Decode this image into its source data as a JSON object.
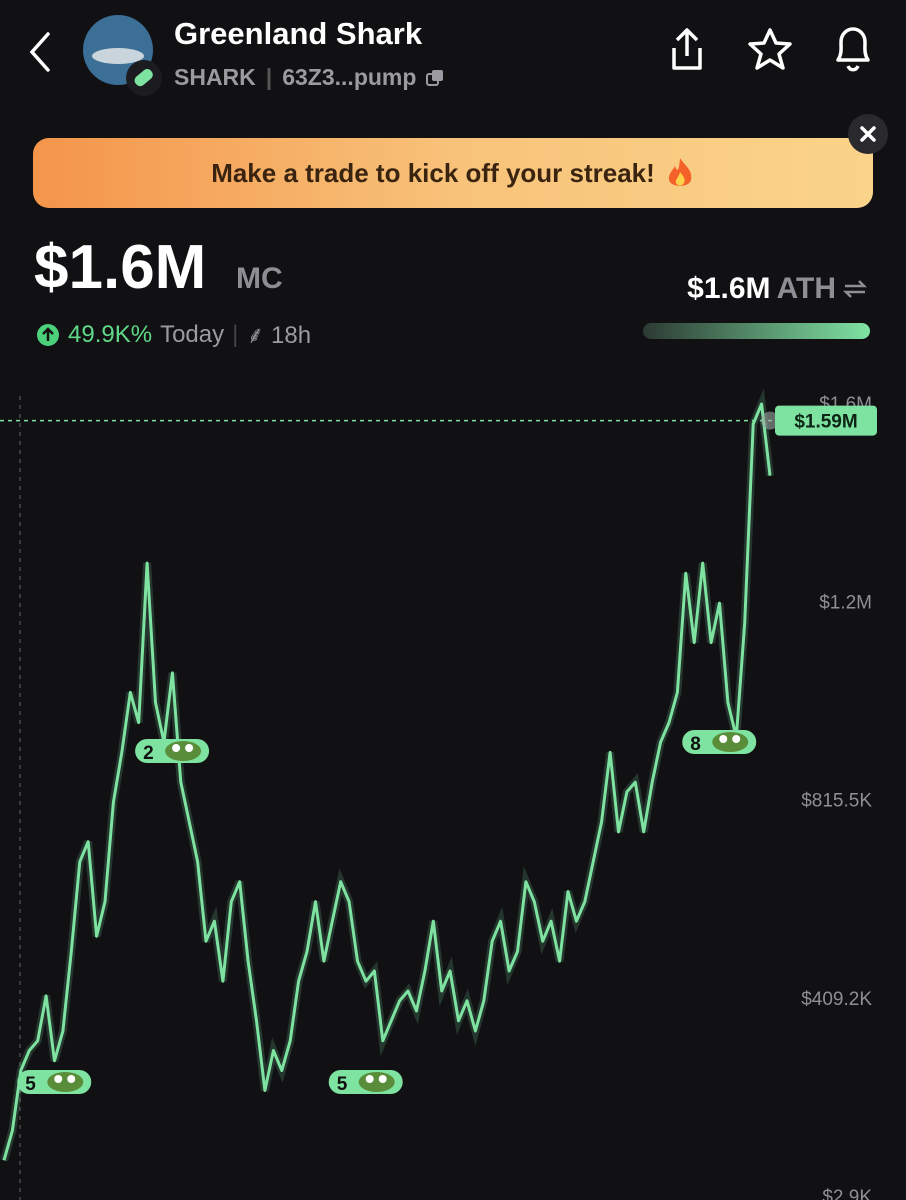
{
  "header": {
    "title": "Greenland Shark",
    "ticker": "SHARK",
    "address": "63Z3...pump"
  },
  "banner": {
    "text": "Make a trade to kick off your streak!"
  },
  "stats": {
    "market_cap": "$1.6M",
    "market_cap_unit": "MC",
    "change": "49.9K%",
    "period": "Today",
    "age": "18h",
    "ath_value": "$1.6M",
    "ath_label": "ATH"
  },
  "chart_data": {
    "type": "line",
    "color": "#7ee2a0",
    "values": [
      74000,
      135000,
      258000,
      299000,
      319000,
      411000,
      278000,
      339000,
      502000,
      686000,
      727000,
      533000,
      604000,
      808000,
      910000,
      1033000,
      971000,
      1298000,
      1012000,
      931000,
      1073000,
      849000,
      768000,
      686000,
      523000,
      564000,
      441000,
      604000,
      645000,
      482000,
      360000,
      217000,
      299000,
      258000,
      319000,
      441000,
      502000,
      604000,
      482000,
      564000,
      645000,
      604000,
      482000,
      441000,
      462000,
      319000,
      360000,
      401000,
      421000,
      380000,
      462000,
      564000,
      421000,
      462000,
      360000,
      401000,
      339000,
      401000,
      523000,
      564000,
      462000,
      502000,
      645000,
      604000,
      523000,
      564000,
      482000,
      625000,
      564000,
      604000,
      686000,
      768000,
      910000,
      747000,
      829000,
      849000,
      747000,
      849000,
      931000,
      971000,
      1033000,
      1277000,
      1135000,
      1298000,
      1135000,
      1216000,
      1012000,
      941000,
      1175000,
      1583000,
      1624000,
      1477000
    ],
    "ylim": [
      2900,
      1628100
    ],
    "yticks": [
      {
        "value": 2900,
        "label": "$2.9K"
      },
      {
        "value": 409200,
        "label": "$409.2K"
      },
      {
        "value": 815500,
        "label": "$815.5K"
      },
      {
        "value": 1221800,
        "label": "$1.2M"
      },
      {
        "value": 1628100,
        "label": "$1.6M"
      }
    ],
    "price_line": {
      "value": 1590000,
      "label": "$1.59M"
    },
    "trade_markers": [
      "5",
      "2",
      "5",
      "8"
    ]
  }
}
